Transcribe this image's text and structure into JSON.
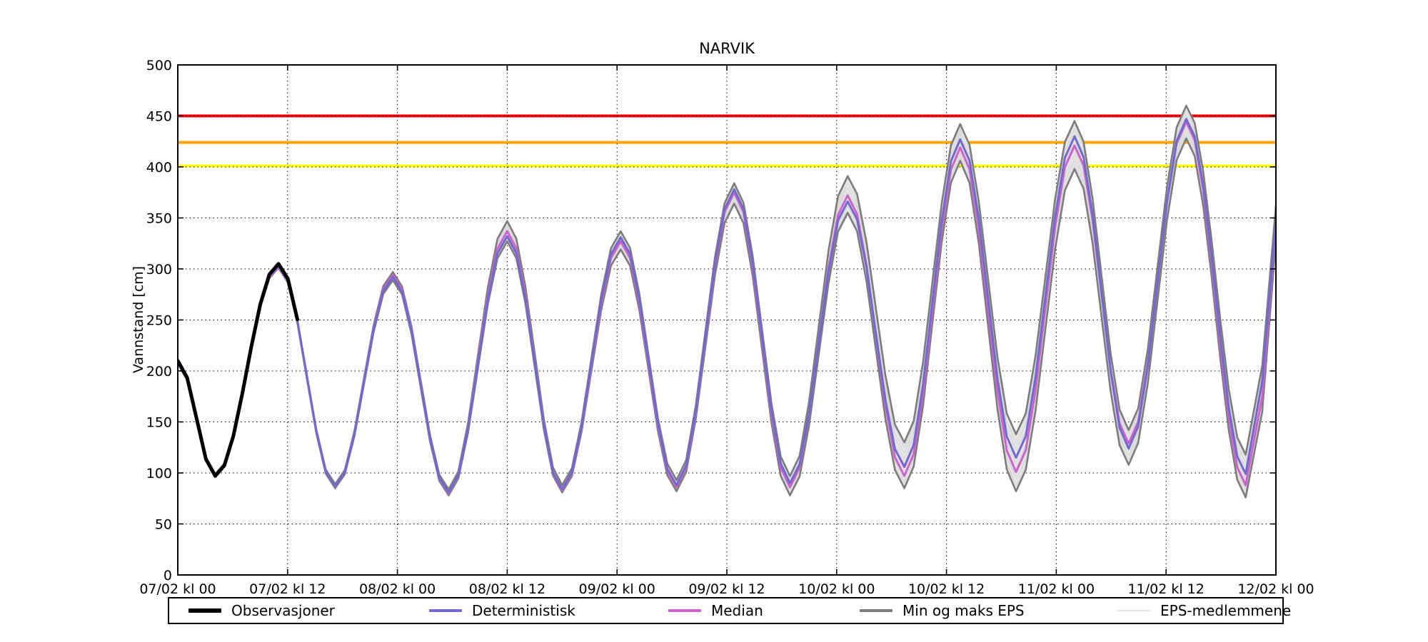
{
  "station": "NARVIK",
  "chart_data": {
    "type": "line",
    "title": "NARVIK",
    "ylabel": "Vannstand [cm]",
    "ylim": [
      0,
      500
    ],
    "yticks": [
      0,
      50,
      100,
      150,
      200,
      250,
      300,
      350,
      400,
      450,
      500
    ],
    "x_hours": 120,
    "xtick_interval_hours": 12,
    "xtick_labels": [
      "07/02 kl 00",
      "07/02 kl 12",
      "08/02 kl 00",
      "08/02 kl 12",
      "09/02 kl 00",
      "09/02 kl 12",
      "10/02 kl 00",
      "10/02 kl 12",
      "11/02 kl 00",
      "11/02 kl 12",
      "12/02 kl 00"
    ],
    "grid": "dotted",
    "thresholds": [
      {
        "value": 450,
        "color": "#ff0000"
      },
      {
        "value": 424,
        "color": "#ffa500"
      },
      {
        "value": 401,
        "color": "#ffff00"
      }
    ],
    "series": [
      {
        "name": "Observasjoner",
        "color": "#000000",
        "width": 5,
        "clip_t": 14,
        "extrema": [
          [
            0,
            210
          ],
          [
            4.1,
            97
          ],
          [
            11,
            305
          ],
          [
            17.2,
            87
          ]
        ]
      },
      {
        "name": "Deterministisk",
        "color": "#7069d0",
        "width": 3,
        "extrema": [
          [
            0,
            208
          ],
          [
            4.1,
            98
          ],
          [
            11,
            303
          ],
          [
            17.2,
            87
          ],
          [
            23.5,
            292
          ],
          [
            29.6,
            81
          ],
          [
            36,
            332
          ],
          [
            42,
            84
          ],
          [
            48.4,
            331
          ],
          [
            54.5,
            88
          ],
          [
            60.8,
            378
          ],
          [
            66.9,
            90
          ],
          [
            73.2,
            366
          ],
          [
            79.4,
            106
          ],
          [
            85.5,
            427
          ],
          [
            91.6,
            115
          ],
          [
            98,
            430
          ],
          [
            103.9,
            124
          ],
          [
            110.2,
            447
          ],
          [
            116.7,
            99
          ],
          [
            118.5,
            190
          ],
          [
            120,
            345
          ]
        ]
      },
      {
        "name": "Median",
        "color": "#cc63cc",
        "width": 3,
        "extrema": [
          [
            0,
            208
          ],
          [
            4.1,
            98
          ],
          [
            11,
            302
          ],
          [
            17.2,
            87
          ],
          [
            23.5,
            294
          ],
          [
            29.6,
            80
          ],
          [
            36,
            337
          ],
          [
            42,
            83
          ],
          [
            48.4,
            327
          ],
          [
            54.5,
            86
          ],
          [
            60.8,
            375
          ],
          [
            66.9,
            86
          ],
          [
            73.2,
            372
          ],
          [
            79.4,
            97
          ],
          [
            85.5,
            419
          ],
          [
            91.6,
            101
          ],
          [
            98,
            421
          ],
          [
            103.9,
            129
          ],
          [
            110.2,
            444
          ],
          [
            116.7,
            88
          ],
          [
            118.5,
            175
          ],
          [
            120,
            342
          ]
        ]
      },
      {
        "name": "Min EPS",
        "color": "#7c7c7c",
        "width": 2.6,
        "extrema": [
          [
            0,
            207
          ],
          [
            4.1,
            97
          ],
          [
            11,
            301
          ],
          [
            17.2,
            85
          ],
          [
            23.5,
            289
          ],
          [
            29.6,
            78
          ],
          [
            36,
            327
          ],
          [
            42,
            81
          ],
          [
            48.4,
            319
          ],
          [
            54.5,
            82
          ],
          [
            60.8,
            364
          ],
          [
            66.9,
            78
          ],
          [
            73.2,
            355
          ],
          [
            79.4,
            85
          ],
          [
            85.5,
            406
          ],
          [
            91.6,
            82
          ],
          [
            98,
            398
          ],
          [
            103.9,
            108
          ],
          [
            110.2,
            428
          ],
          [
            116.7,
            76
          ],
          [
            118.5,
            160
          ],
          [
            120,
            328
          ]
        ]
      },
      {
        "name": "Maks EPS",
        "color": "#7c7c7c",
        "width": 2.6,
        "extrema": [
          [
            0,
            211
          ],
          [
            4.1,
            99
          ],
          [
            11,
            304
          ],
          [
            17.2,
            89
          ],
          [
            23.5,
            297
          ],
          [
            29.6,
            84
          ],
          [
            36,
            347
          ],
          [
            42,
            88
          ],
          [
            48.4,
            337
          ],
          [
            54.5,
            93
          ],
          [
            60.8,
            384
          ],
          [
            66.9,
            97
          ],
          [
            73.2,
            391
          ],
          [
            79.4,
            130
          ],
          [
            85.5,
            442
          ],
          [
            91.6,
            138
          ],
          [
            98,
            445
          ],
          [
            103.9,
            142
          ],
          [
            110.2,
            460
          ],
          [
            116.7,
            118
          ],
          [
            118.5,
            205
          ],
          [
            120,
            362
          ]
        ]
      }
    ],
    "eps_members": {
      "count": 24,
      "color": "#d8d8d8",
      "band_color": "#efefef",
      "width": 1
    },
    "legend": [
      {
        "label": "Observasjoner",
        "color": "#000000",
        "thickness": 6
      },
      {
        "label": "Deterministisk",
        "color": "#7069d0",
        "thickness": 4
      },
      {
        "label": "Median",
        "color": "#cc63cc",
        "thickness": 4
      },
      {
        "label": "Min og maks EPS",
        "color": "#7c7c7c",
        "thickness": 4
      },
      {
        "label": "EPS-medlemmene",
        "color": "#dedede",
        "thickness": 2
      }
    ]
  }
}
